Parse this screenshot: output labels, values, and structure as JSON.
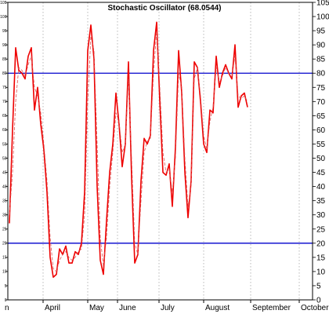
{
  "chart_data": {
    "type": "line",
    "title": "Stochastic Oscillator (68.0544)",
    "xlabel": "",
    "ylabel": "",
    "ylim": [
      0,
      105
    ],
    "y_ticks": [
      0,
      5,
      10,
      15,
      20,
      25,
      30,
      35,
      40,
      45,
      50,
      55,
      60,
      65,
      70,
      75,
      80,
      85,
      90,
      95,
      100,
      105
    ],
    "x_months": [
      "April",
      "May",
      "June",
      "July",
      "August",
      "September",
      "October"
    ],
    "first_month_truncated": "n",
    "grid": "vertical dotted lines at month starts",
    "reference_lines": [
      {
        "value": 80,
        "color": "#0000cc"
      },
      {
        "value": 20,
        "color": "#0000cc"
      }
    ],
    "series": [
      {
        "style": "solid",
        "color": "#ee0000",
        "x": [
          0,
          2,
          4,
          6,
          8,
          10,
          12,
          14,
          16,
          18,
          20,
          22,
          24,
          26,
          28,
          30,
          32,
          34,
          36,
          38,
          40,
          42,
          44,
          46,
          48,
          50,
          52,
          54,
          56,
          58,
          60,
          62,
          64,
          66,
          68,
          70,
          72,
          74,
          76,
          78,
          80,
          82,
          84,
          86,
          88,
          90,
          92,
          94,
          96,
          98,
          100,
          102,
          104,
          106,
          108,
          110,
          112,
          114,
          116,
          118,
          120,
          122,
          124,
          126,
          128,
          130,
          132,
          134,
          136,
          138,
          140,
          142,
          144,
          146,
          148,
          150,
          152,
          154,
          156,
          158,
          160,
          162,
          164,
          166,
          168,
          170,
          172,
          174,
          176,
          178,
          180,
          182,
          184,
          186
        ],
        "values": [
          27,
          60,
          89,
          81,
          80,
          78,
          86,
          89,
          67,
          75,
          62,
          53,
          38,
          15,
          8,
          9,
          18,
          16,
          19,
          13,
          13,
          17,
          16,
          20,
          38,
          88,
          97,
          85,
          40,
          14,
          9,
          28,
          45,
          55,
          73,
          62,
          47,
          55,
          84,
          43,
          13,
          16,
          42,
          57,
          55,
          58,
          88,
          98,
          70,
          45,
          44,
          48,
          33,
          54,
          88,
          73,
          45,
          29,
          42,
          84,
          82,
          70,
          55,
          52,
          67,
          66,
          86,
          75,
          80,
          83,
          80,
          78,
          90,
          68,
          72,
          73,
          68,
          null,
          null,
          null,
          null,
          null,
          null,
          null,
          null,
          null,
          null,
          null,
          null,
          null,
          null,
          null,
          null,
          null
        ]
      },
      {
        "style": "dashed",
        "color": "#dd5555",
        "x": [
          0,
          2,
          4,
          6,
          8,
          10,
          12,
          14,
          16,
          18,
          20,
          22,
          24,
          26,
          28,
          30,
          32,
          34,
          36,
          38,
          40,
          42,
          44,
          46,
          48,
          50,
          52,
          54,
          56,
          58,
          60,
          62,
          64,
          66,
          68,
          70,
          72,
          74,
          76,
          78,
          80,
          82,
          84,
          86,
          88,
          90,
          92,
          94,
          96,
          98,
          100,
          102,
          104,
          106,
          108,
          110,
          112,
          114,
          116,
          118,
          120,
          122,
          124,
          126,
          128,
          130,
          132,
          134,
          136,
          138,
          140,
          142,
          144,
          146,
          148,
          150,
          152
        ],
        "values": [
          30,
          45,
          70,
          82,
          81,
          79,
          83,
          86,
          75,
          72,
          66,
          55,
          42,
          22,
          11,
          10,
          14,
          16,
          17,
          15,
          14,
          15,
          17,
          18,
          30,
          70,
          93,
          88,
          55,
          22,
          12,
          22,
          40,
          52,
          66,
          63,
          52,
          55,
          78,
          50,
          20,
          16,
          35,
          52,
          56,
          57,
          80,
          95,
          75,
          52,
          45,
          46,
          38,
          50,
          80,
          75,
          50,
          33,
          40,
          78,
          82,
          72,
          58,
          53,
          63,
          68,
          82,
          77,
          79,
          82,
          80,
          79,
          86,
          72,
          71,
          72,
          70
        ]
      }
    ]
  }
}
